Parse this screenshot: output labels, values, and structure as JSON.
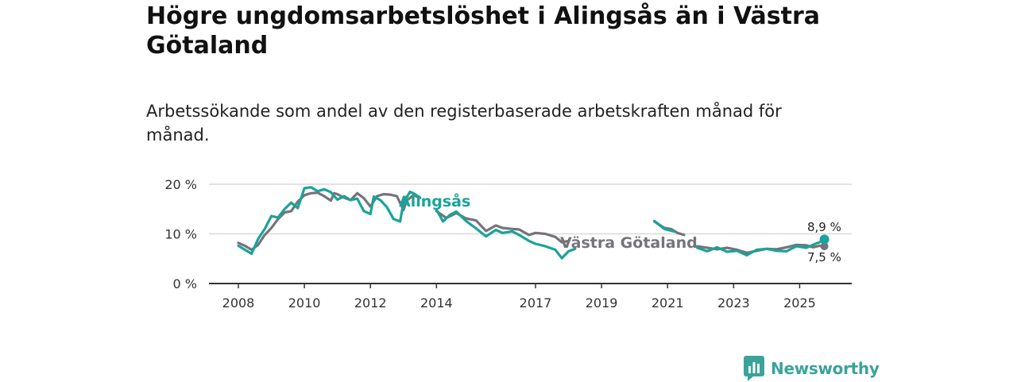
{
  "header": {
    "title": "Högre ungdomsarbetslöshet i Alingsås än i Västra Götaland",
    "subtitle": "Arbetssökande som andel av den registerbaserade arbetskraften månad för månad."
  },
  "brand": {
    "name": "Newsworthy",
    "color": "#3aa39a",
    "icon": "bar-chart-speech-bubble-icon"
  },
  "chart_data": {
    "type": "line",
    "title": "Högre ungdomsarbetslöshet i Alingsås än i Västra Götaland",
    "xlabel": "",
    "ylabel": "",
    "ylim": [
      0,
      20
    ],
    "xlim": [
      2008.0,
      2026.0
    ],
    "y_ticks": [
      {
        "value": 0,
        "label": "0 %"
      },
      {
        "value": 10,
        "label": "10 %"
      },
      {
        "value": 20,
        "label": "20 %"
      }
    ],
    "x_ticks": [
      {
        "value": 2008,
        "label": "2008"
      },
      {
        "value": 2010,
        "label": "2010"
      },
      {
        "value": 2012,
        "label": "2012"
      },
      {
        "value": 2014,
        "label": "2014"
      },
      {
        "value": 2017,
        "label": "2017"
      },
      {
        "value": 2019,
        "label": "2019"
      },
      {
        "value": 2021,
        "label": "2021"
      },
      {
        "value": 2023,
        "label": "2023"
      },
      {
        "value": 2025,
        "label": "2025"
      }
    ],
    "grid": true,
    "series": [
      {
        "name": "Västra Götaland",
        "color": "#76737a",
        "label": "Västra Götaland",
        "end_label": "7,5 %",
        "points": [
          [
            2008.0,
            8.2
          ],
          [
            2008.2,
            7.6
          ],
          [
            2008.4,
            6.8
          ],
          [
            2008.6,
            7.8
          ],
          [
            2008.8,
            9.8
          ],
          [
            2009.0,
            11.2
          ],
          [
            2009.2,
            13.0
          ],
          [
            2009.4,
            14.3
          ],
          [
            2009.6,
            14.6
          ],
          [
            2009.8,
            16.5
          ],
          [
            2010.0,
            17.8
          ],
          [
            2010.2,
            18.2
          ],
          [
            2010.4,
            18.3
          ],
          [
            2010.6,
            17.6
          ],
          [
            2010.8,
            16.7
          ],
          [
            2010.9,
            18.2
          ],
          [
            2011.0,
            18.0
          ],
          [
            2011.2,
            17.3
          ],
          [
            2011.4,
            16.8
          ],
          [
            2011.6,
            18.2
          ],
          [
            2011.8,
            17.2
          ],
          [
            2012.0,
            15.5
          ],
          [
            2012.2,
            17.6
          ],
          [
            2012.4,
            18.0
          ],
          [
            2012.6,
            17.9
          ],
          [
            2012.8,
            17.6
          ],
          [
            2013.0,
            14.8
          ],
          [
            2013.1,
            16.7
          ],
          [
            2013.3,
            17.8
          ],
          [
            2013.5,
            17.3
          ],
          [
            2013.6,
            null
          ],
          [
            2014.0,
            14.6
          ],
          [
            2014.3,
            13.2
          ],
          [
            2014.6,
            14.2
          ],
          [
            2014.9,
            13.1
          ],
          [
            2015.2,
            12.7
          ],
          [
            2015.5,
            10.6
          ],
          [
            2015.8,
            11.7
          ],
          [
            2016.0,
            11.2
          ],
          [
            2016.3,
            11.0
          ],
          [
            2016.5,
            10.9
          ],
          [
            2016.8,
            9.8
          ],
          [
            2017.0,
            10.2
          ],
          [
            2017.3,
            10.0
          ],
          [
            2017.6,
            9.4
          ],
          [
            2017.8,
            8.3
          ],
          [
            2018.0,
            8.6
          ],
          [
            2018.1,
            null
          ],
          [
            2020.6,
            12.5
          ],
          [
            2020.9,
            11.2
          ],
          [
            2021.1,
            11.0
          ],
          [
            2021.3,
            10.2
          ],
          [
            2021.5,
            9.8
          ],
          [
            2021.6,
            null
          ],
          [
            2021.9,
            7.5
          ],
          [
            2022.2,
            7.2
          ],
          [
            2022.5,
            6.9
          ],
          [
            2022.8,
            7.2
          ],
          [
            2023.1,
            6.8
          ],
          [
            2023.4,
            6.2
          ],
          [
            2023.7,
            6.6
          ],
          [
            2024.0,
            7.0
          ],
          [
            2024.3,
            6.9
          ],
          [
            2024.6,
            7.3
          ],
          [
            2024.9,
            7.8
          ],
          [
            2025.2,
            7.7
          ],
          [
            2025.4,
            7.3
          ],
          [
            2025.6,
            7.6
          ],
          [
            2025.75,
            7.5
          ]
        ]
      },
      {
        "name": "Alingsås",
        "color": "#1aa39a",
        "label": "Alingsås",
        "end_label": "8,9 %",
        "points": [
          [
            2008.0,
            7.6
          ],
          [
            2008.2,
            6.8
          ],
          [
            2008.4,
            6.0
          ],
          [
            2008.6,
            9.0
          ],
          [
            2008.8,
            11.0
          ],
          [
            2009.0,
            13.6
          ],
          [
            2009.2,
            13.3
          ],
          [
            2009.4,
            15.0
          ],
          [
            2009.6,
            16.3
          ],
          [
            2009.8,
            15.2
          ],
          [
            2010.0,
            19.2
          ],
          [
            2010.2,
            19.4
          ],
          [
            2010.4,
            18.6
          ],
          [
            2010.6,
            19.0
          ],
          [
            2010.8,
            18.4
          ],
          [
            2011.0,
            16.9
          ],
          [
            2011.2,
            17.6
          ],
          [
            2011.4,
            16.8
          ],
          [
            2011.6,
            17.1
          ],
          [
            2011.8,
            14.6
          ],
          [
            2012.0,
            14.0
          ],
          [
            2012.1,
            17.5
          ],
          [
            2012.3,
            16.8
          ],
          [
            2012.5,
            15.4
          ],
          [
            2012.7,
            13.0
          ],
          [
            2012.9,
            12.5
          ],
          [
            2013.0,
            16.3
          ],
          [
            2013.2,
            18.5
          ],
          [
            2013.35,
            18.0
          ],
          [
            2013.5,
            17.3
          ],
          [
            2013.6,
            null
          ],
          [
            2014.0,
            14.9
          ],
          [
            2014.2,
            12.5
          ],
          [
            2014.4,
            13.8
          ],
          [
            2014.6,
            14.5
          ],
          [
            2014.9,
            12.6
          ],
          [
            2015.2,
            11.1
          ],
          [
            2015.5,
            9.5
          ],
          [
            2015.8,
            10.8
          ],
          [
            2016.0,
            10.2
          ],
          [
            2016.3,
            10.5
          ],
          [
            2016.5,
            9.8
          ],
          [
            2016.8,
            8.6
          ],
          [
            2017.0,
            8.0
          ],
          [
            2017.3,
            7.5
          ],
          [
            2017.6,
            6.8
          ],
          [
            2017.8,
            5.1
          ],
          [
            2018.0,
            6.5
          ],
          [
            2018.2,
            7.0
          ],
          [
            2018.4,
            null
          ],
          [
            2020.6,
            12.6
          ],
          [
            2020.9,
            11.0
          ],
          [
            2021.2,
            10.5
          ],
          [
            2021.4,
            null
          ],
          [
            2021.9,
            7.2
          ],
          [
            2022.2,
            6.5
          ],
          [
            2022.5,
            7.3
          ],
          [
            2022.8,
            6.4
          ],
          [
            2023.1,
            6.6
          ],
          [
            2023.4,
            5.7
          ],
          [
            2023.7,
            6.8
          ],
          [
            2024.0,
            7.0
          ],
          [
            2024.3,
            6.6
          ],
          [
            2024.6,
            6.5
          ],
          [
            2024.9,
            7.5
          ],
          [
            2025.2,
            7.2
          ],
          [
            2025.4,
            7.8
          ],
          [
            2025.6,
            8.3
          ],
          [
            2025.75,
            8.9
          ]
        ]
      }
    ]
  }
}
